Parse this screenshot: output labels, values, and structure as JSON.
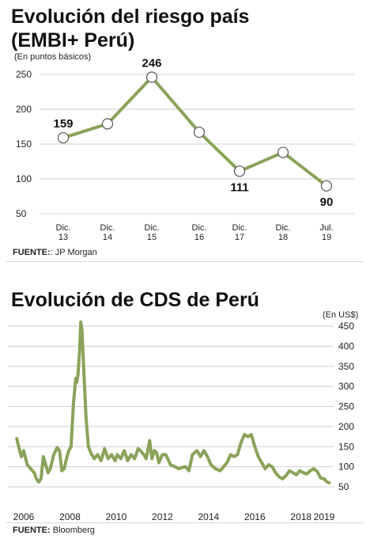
{
  "chart_data": [
    {
      "type": "line",
      "title": "Evolución del riesgo país",
      "subtitle": "(EMBI+ Perú)",
      "unit_label": "(En puntos básicos)",
      "categories": [
        [
          "Dic.",
          "13"
        ],
        [
          "Dic.",
          "14"
        ],
        [
          "Dic.",
          "15"
        ],
        [
          "Dic.",
          "16"
        ],
        [
          "Dic.",
          "17"
        ],
        [
          "Dic.",
          "18"
        ],
        [
          "Jul.",
          "19"
        ]
      ],
      "values": [
        159,
        179,
        246,
        167,
        111,
        138,
        90
      ],
      "data_labels": [
        {
          "index": 0,
          "text": "159"
        },
        {
          "index": 2,
          "text": "246"
        },
        {
          "index": 4,
          "text": "111"
        },
        {
          "index": 6,
          "text": "90"
        }
      ],
      "y_ticks": [
        250,
        200,
        150,
        100,
        50
      ],
      "ylim": [
        50,
        250
      ],
      "grid": true,
      "color": "#8aa35a",
      "source_label": "FUENTE:",
      "source_text": ": JP Morgan"
    },
    {
      "type": "line",
      "title": "Evolución de CDS de Perú",
      "unit_label": "(En US$)",
      "x_ticks": [
        "2006",
        "2008",
        "2010",
        "2012",
        "2014",
        "2016",
        "2018",
        "2019"
      ],
      "x_tick_values": [
        2006,
        2008,
        2010,
        2012,
        2014,
        2016,
        2018,
        2019
      ],
      "y_ticks": [
        450,
        400,
        350,
        300,
        250,
        200,
        150,
        100,
        50
      ],
      "ylim": [
        50,
        450
      ],
      "xlim": [
        2005.6,
        2019.3
      ],
      "grid": true,
      "color": "#8aa35a",
      "x": [
        2005.7,
        2005.8,
        2005.9,
        2006.0,
        2006.15,
        2006.3,
        2006.45,
        2006.55,
        2006.65,
        2006.75,
        2006.85,
        2006.95,
        2007.05,
        2007.15,
        2007.3,
        2007.45,
        2007.55,
        2007.65,
        2007.75,
        2007.85,
        2007.95,
        2008.05,
        2008.15,
        2008.25,
        2008.3,
        2008.35,
        2008.42,
        2008.47,
        2008.52,
        2008.6,
        2008.7,
        2008.8,
        2008.9,
        2009.05,
        2009.2,
        2009.35,
        2009.5,
        2009.65,
        2009.8,
        2009.95,
        2010.05,
        2010.2,
        2010.35,
        2010.5,
        2010.65,
        2010.8,
        2010.95,
        2011.05,
        2011.2,
        2011.3,
        2011.45,
        2011.55,
        2011.65,
        2011.75,
        2011.85,
        2012.0,
        2012.15,
        2012.35,
        2012.55,
        2012.7,
        2012.85,
        2013.0,
        2013.15,
        2013.3,
        2013.5,
        2013.65,
        2013.8,
        2013.95,
        2014.1,
        2014.3,
        2014.5,
        2014.65,
        2014.8,
        2014.95,
        2015.1,
        2015.25,
        2015.4,
        2015.55,
        2015.7,
        2015.85,
        2016.0,
        2016.15,
        2016.3,
        2016.45,
        2016.6,
        2016.75,
        2016.9,
        2017.05,
        2017.2,
        2017.35,
        2017.5,
        2017.65,
        2017.8,
        2017.95,
        2018.1,
        2018.25,
        2018.4,
        2018.55,
        2018.7,
        2018.85,
        2019.0,
        2019.12,
        2019.22
      ],
      "y": [
        170,
        145,
        125,
        140,
        105,
        95,
        85,
        70,
        62,
        70,
        125,
        105,
        85,
        95,
        130,
        148,
        140,
        90,
        95,
        120,
        140,
        150,
        255,
        320,
        310,
        330,
        390,
        460,
        440,
        340,
        220,
        150,
        135,
        120,
        130,
        115,
        145,
        120,
        130,
        115,
        130,
        120,
        140,
        115,
        130,
        120,
        145,
        140,
        130,
        120,
        165,
        120,
        140,
        135,
        110,
        130,
        130,
        105,
        100,
        95,
        98,
        100,
        90,
        130,
        140,
        125,
        140,
        125,
        105,
        95,
        90,
        100,
        110,
        130,
        125,
        130,
        160,
        180,
        175,
        180,
        150,
        125,
        110,
        95,
        105,
        100,
        85,
        75,
        70,
        78,
        90,
        85,
        80,
        90,
        85,
        82,
        90,
        95,
        88,
        72,
        70,
        62,
        60
      ],
      "source_label": "FUENTE:",
      "source_text": "Bloomberg"
    }
  ]
}
